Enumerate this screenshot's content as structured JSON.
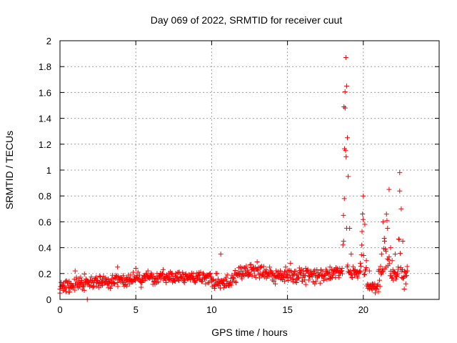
{
  "chart_data": {
    "type": "scatter",
    "title": "Day 069 of 2022, SRMTID for receiver cuut",
    "xlabel": "GPS time / hours",
    "ylabel": "SRMTID / TECUs",
    "xlim": [
      0,
      25
    ],
    "ylim": [
      0,
      2
    ],
    "xticks": [
      0,
      5,
      10,
      15,
      20
    ],
    "xtick_labels": [
      "0",
      "5",
      "10",
      "15",
      "20"
    ],
    "yticks": [
      0,
      0.2,
      0.4,
      0.6,
      0.8,
      1,
      1.2,
      1.4,
      1.6,
      1.8,
      2
    ],
    "ytick_labels": [
      "0",
      "0.2",
      "0.4",
      "0.6",
      "0.8",
      "1",
      "1.2",
      "1.4",
      "1.6",
      "1.8",
      "2"
    ],
    "grid": true,
    "marker": "plus",
    "color": "#ff0000",
    "series": [
      {
        "name": "SRMTID",
        "x": [
          0.0,
          0.2,
          0.4,
          0.6,
          0.8,
          1.0,
          1.2,
          1.4,
          1.6,
          1.8,
          2.0,
          2.2,
          2.4,
          2.6,
          2.8,
          3.0,
          3.2,
          3.4,
          3.6,
          3.8,
          4.0,
          4.2,
          4.4,
          4.6,
          4.8,
          5.0,
          5.2,
          5.4,
          5.6,
          5.8,
          6.0,
          6.2,
          6.4,
          6.6,
          6.8,
          7.0,
          7.2,
          7.4,
          7.6,
          7.8,
          8.0,
          8.2,
          8.4,
          8.6,
          8.8,
          9.0,
          9.2,
          9.4,
          9.6,
          9.8,
          10.0,
          10.2,
          10.4,
          10.6,
          10.8,
          11.0,
          11.2,
          11.4,
          11.6,
          11.8,
          12.0,
          12.2,
          12.4,
          12.6,
          12.8,
          13.0,
          13.2,
          13.4,
          13.6,
          13.8,
          14.0,
          14.2,
          14.4,
          14.6,
          14.8,
          15.0,
          15.2,
          15.4,
          15.6,
          15.8,
          16.0,
          16.2,
          16.4,
          16.6,
          16.8,
          17.0,
          17.2,
          17.4,
          17.6,
          17.8,
          18.0,
          18.2,
          18.4,
          18.6,
          18.7,
          18.75,
          18.8,
          18.85,
          18.9,
          18.95,
          19.0,
          19.1,
          19.2,
          19.4,
          19.6,
          19.8,
          19.9,
          20.0,
          20.1,
          20.2,
          20.4,
          20.6,
          20.8,
          21.0,
          21.1,
          21.2,
          21.3,
          21.4,
          21.5,
          21.6,
          21.7,
          21.8,
          21.9,
          22.0,
          22.1,
          22.2,
          22.3,
          22.4,
          22.5,
          22.6,
          22.7,
          22.8,
          22.9
        ],
        "y": [
          0.08,
          0.11,
          0.06,
          0.14,
          0.1,
          0.22,
          0.09,
          0.13,
          0.07,
          0.12,
          0.15,
          0.1,
          0.13,
          0.18,
          0.11,
          0.14,
          0.09,
          0.16,
          0.12,
          0.25,
          0.15,
          0.13,
          0.17,
          0.12,
          0.14,
          0.24,
          0.16,
          0.13,
          0.18,
          0.22,
          0.17,
          0.14,
          0.2,
          0.16,
          0.23,
          0.18,
          0.15,
          0.19,
          0.14,
          0.21,
          0.17,
          0.13,
          0.18,
          0.15,
          0.2,
          0.16,
          0.19,
          0.14,
          0.12,
          0.18,
          0.15,
          0.1,
          0.12,
          0.35,
          0.09,
          0.14,
          0.11,
          0.17,
          0.13,
          0.2,
          0.16,
          0.24,
          0.18,
          0.27,
          0.22,
          0.29,
          0.25,
          0.21,
          0.23,
          0.18,
          0.15,
          0.12,
          0.17,
          0.2,
          0.14,
          0.19,
          0.28,
          0.16,
          0.13,
          0.21,
          0.17,
          0.24,
          0.15,
          0.19,
          0.12,
          0.18,
          0.23,
          0.16,
          0.2,
          0.25,
          0.19,
          0.22,
          0.17,
          0.24,
          0.45,
          0.78,
          1.48,
          1.87,
          1.65,
          1.25,
          0.95,
          0.55,
          0.35,
          0.22,
          0.18,
          0.28,
          0.42,
          0.8,
          0.58,
          0.3,
          0.22,
          0.12,
          0.08,
          0.06,
          0.1,
          0.35,
          0.6,
          0.45,
          0.25,
          0.55,
          0.85,
          0.4,
          0.3,
          0.2,
          0.35,
          0.18,
          0.25,
          0.98,
          0.7,
          0.45,
          0.08,
          0.12,
          0.22
        ]
      }
    ],
    "dense_cloud": true
  }
}
